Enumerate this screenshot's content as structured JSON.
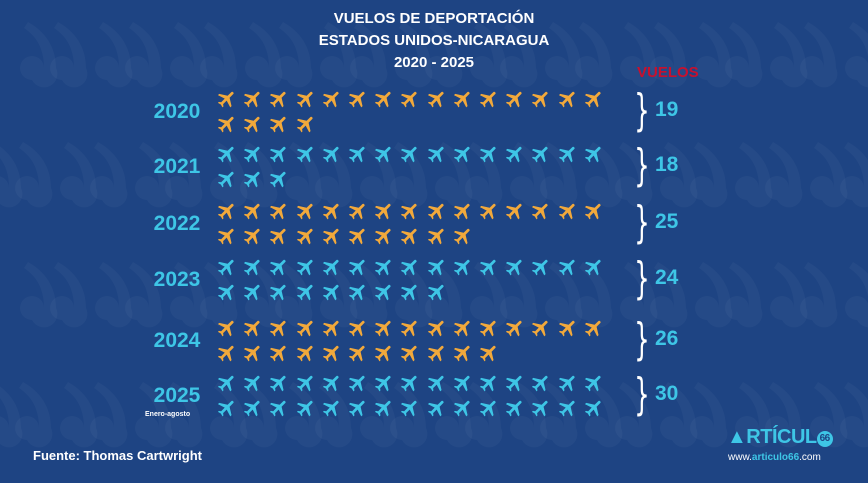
{
  "chart_data": {
    "type": "pictograph",
    "title": [
      "VUELOS DE DEPORTACIÓN",
      "ESTADOS UNIDOS-NICARAGUA",
      "2020 - 2025"
    ],
    "value_header": "VUELOS",
    "categories": [
      "2020",
      "2021",
      "2022",
      "2023",
      "2024",
      "2025"
    ],
    "category_notes": {
      "2025": "Enero-agosto"
    },
    "values": [
      19,
      18,
      25,
      24,
      26,
      30
    ],
    "icon": "airplane-icon",
    "icons_per_row": 15,
    "colors": [
      "#f2a93b",
      "#3ec6e6",
      "#f2a93b",
      "#3ec6e6",
      "#f2a93b",
      "#3ec6e6"
    ]
  },
  "source": "Fuente: Thomas Cartwright",
  "brand": {
    "logo": "ARTÍCULO66",
    "url_prefix": "www.",
    "url_main": "articulo66",
    "url_suffix": ".com"
  }
}
